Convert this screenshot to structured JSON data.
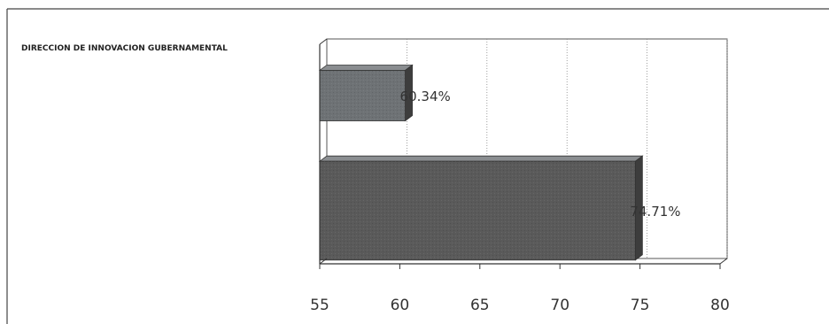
{
  "chart_data": {
    "type": "bar",
    "orientation": "horizontal",
    "style": "3d",
    "categories": [
      "DIRECCION DE INNOVACION GUBERNAMENTAL",
      ""
    ],
    "values": [
      60.34,
      74.71
    ],
    "data_labels": [
      "60.34%",
      "74.71%"
    ],
    "colors": [
      "#6e7275",
      "#5a5a5a"
    ],
    "xlim": [
      55,
      80
    ],
    "xticks": [
      55,
      60,
      65,
      70,
      75,
      80
    ],
    "xtick_labels": [
      "55",
      "60",
      "65",
      "70",
      "75",
      "80"
    ],
    "title": "",
    "xlabel": "",
    "ylabel": "",
    "grid": "vertical",
    "legend": "none"
  }
}
